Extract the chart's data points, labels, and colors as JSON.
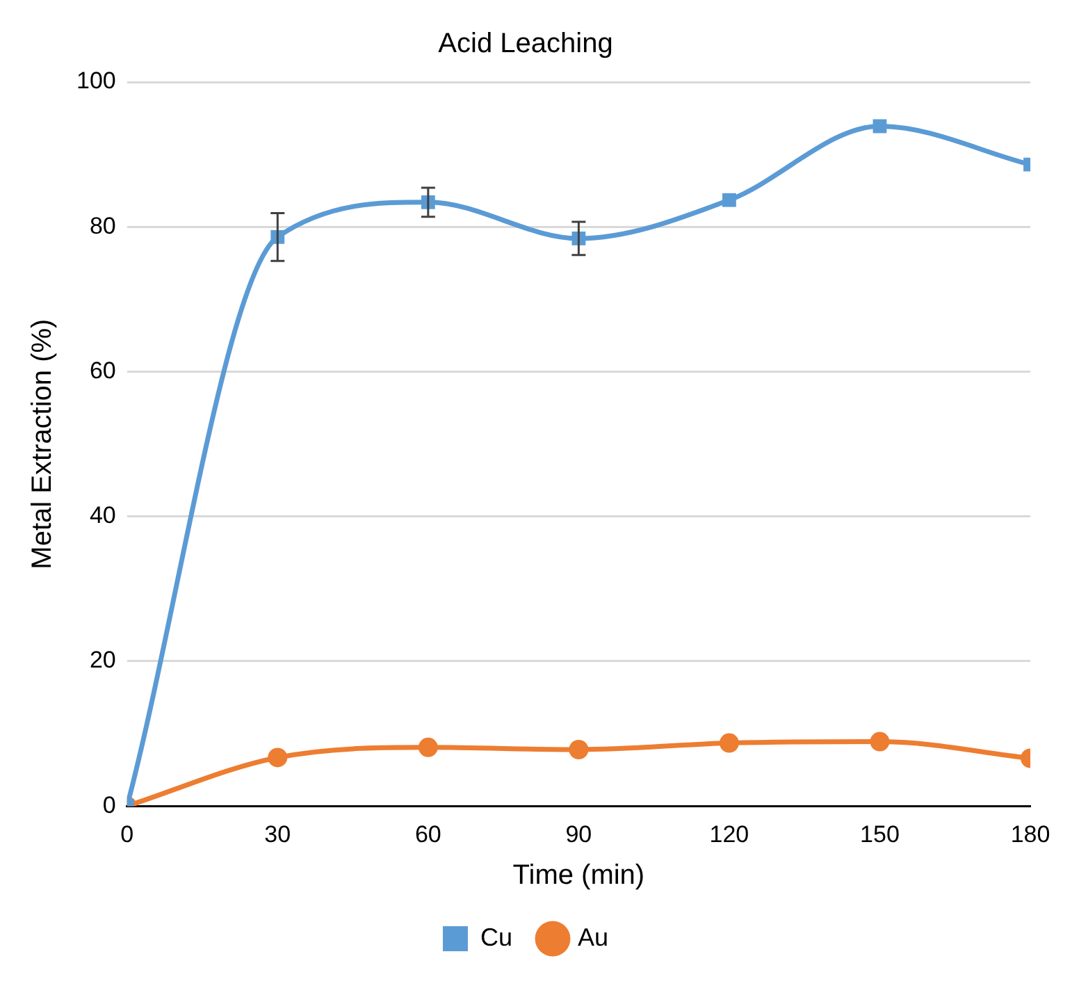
{
  "chart_data": {
    "type": "line",
    "title": "Acid Leaching",
    "xlabel": "Time (min)",
    "ylabel": "Metal Extraction (%)",
    "x": [
      0,
      30,
      60,
      90,
      120,
      150,
      180
    ],
    "series": [
      {
        "name": "Cu",
        "color": "#5b9bd5",
        "marker": "square",
        "values": [
          0,
          78.6,
          83.4,
          78.4,
          83.7,
          93.9,
          88.6
        ],
        "errors": [
          null,
          3.3,
          2,
          2.3,
          null,
          null,
          null
        ]
      },
      {
        "name": "Au",
        "color": "#ed7d31",
        "marker": "circle",
        "values": [
          0,
          6.7,
          8.1,
          7.8,
          8.7,
          8.9,
          6.6
        ]
      }
    ],
    "xlim": [
      0,
      180
    ],
    "xticks": [
      0,
      30,
      60,
      90,
      120,
      150,
      180
    ],
    "ylim": [
      0,
      100
    ],
    "yticks": [
      0,
      20,
      40,
      60,
      80,
      100
    ],
    "grid": "y",
    "legend": "bottom",
    "line_style": "solid"
  }
}
